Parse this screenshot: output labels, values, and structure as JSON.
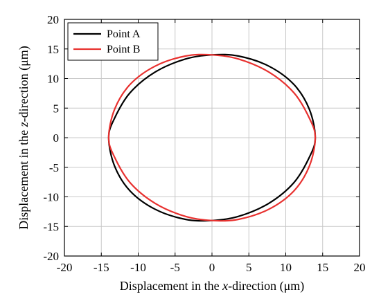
{
  "chart_data": {
    "type": "line",
    "title": "",
    "xlabel": {
      "prefix": "Displacement in the ",
      "italic": "x",
      "suffix": "-direction (μm)"
    },
    "ylabel": {
      "prefix": "Displacement in the ",
      "italic": "z",
      "suffix": "-direction (μm)"
    },
    "xlim": [
      -20,
      20
    ],
    "ylim": [
      -20,
      20
    ],
    "xticks": [
      -20,
      -15,
      -10,
      -5,
      0,
      5,
      10,
      15,
      20
    ],
    "yticks": [
      -20,
      -15,
      -10,
      -5,
      0,
      5,
      10,
      15,
      20
    ],
    "grid": true,
    "legend_position": "top-left",
    "series": [
      {
        "name": "Point A",
        "color": "#000000",
        "x": [
          14.0,
          13.2,
          11.1,
          7.7,
          3.6,
          0.0,
          -3.6,
          -7.7,
          -11.1,
          -13.2,
          -14.0,
          -13.2,
          -11.1,
          -7.7,
          -3.6,
          0.0,
          3.6,
          7.7,
          11.1,
          13.2,
          14.0
        ],
        "y": [
          0.0,
          4.8,
          9.0,
          12.1,
          13.8,
          14.0,
          13.3,
          11.1,
          7.6,
          3.3,
          0.0,
          -4.8,
          -9.0,
          -12.1,
          -13.8,
          -14.0,
          -13.3,
          -11.1,
          -7.6,
          -3.3,
          0.0
        ]
      },
      {
        "name": "Point B",
        "color": "#e8312f",
        "x": [
          14.0,
          13.2,
          11.1,
          7.7,
          3.6,
          0.0,
          -3.6,
          -7.7,
          -11.1,
          -13.2,
          -14.0,
          -13.2,
          -11.1,
          -7.7,
          -3.6,
          0.0,
          3.6,
          7.7,
          11.1,
          13.2,
          14.0
        ],
        "y": [
          0.0,
          3.3,
          7.6,
          11.1,
          13.3,
          14.0,
          13.8,
          12.1,
          9.0,
          4.8,
          0.0,
          -3.3,
          -7.6,
          -11.1,
          -13.3,
          -14.0,
          -13.8,
          -12.1,
          -9.0,
          -4.8,
          0.0
        ]
      }
    ]
  }
}
